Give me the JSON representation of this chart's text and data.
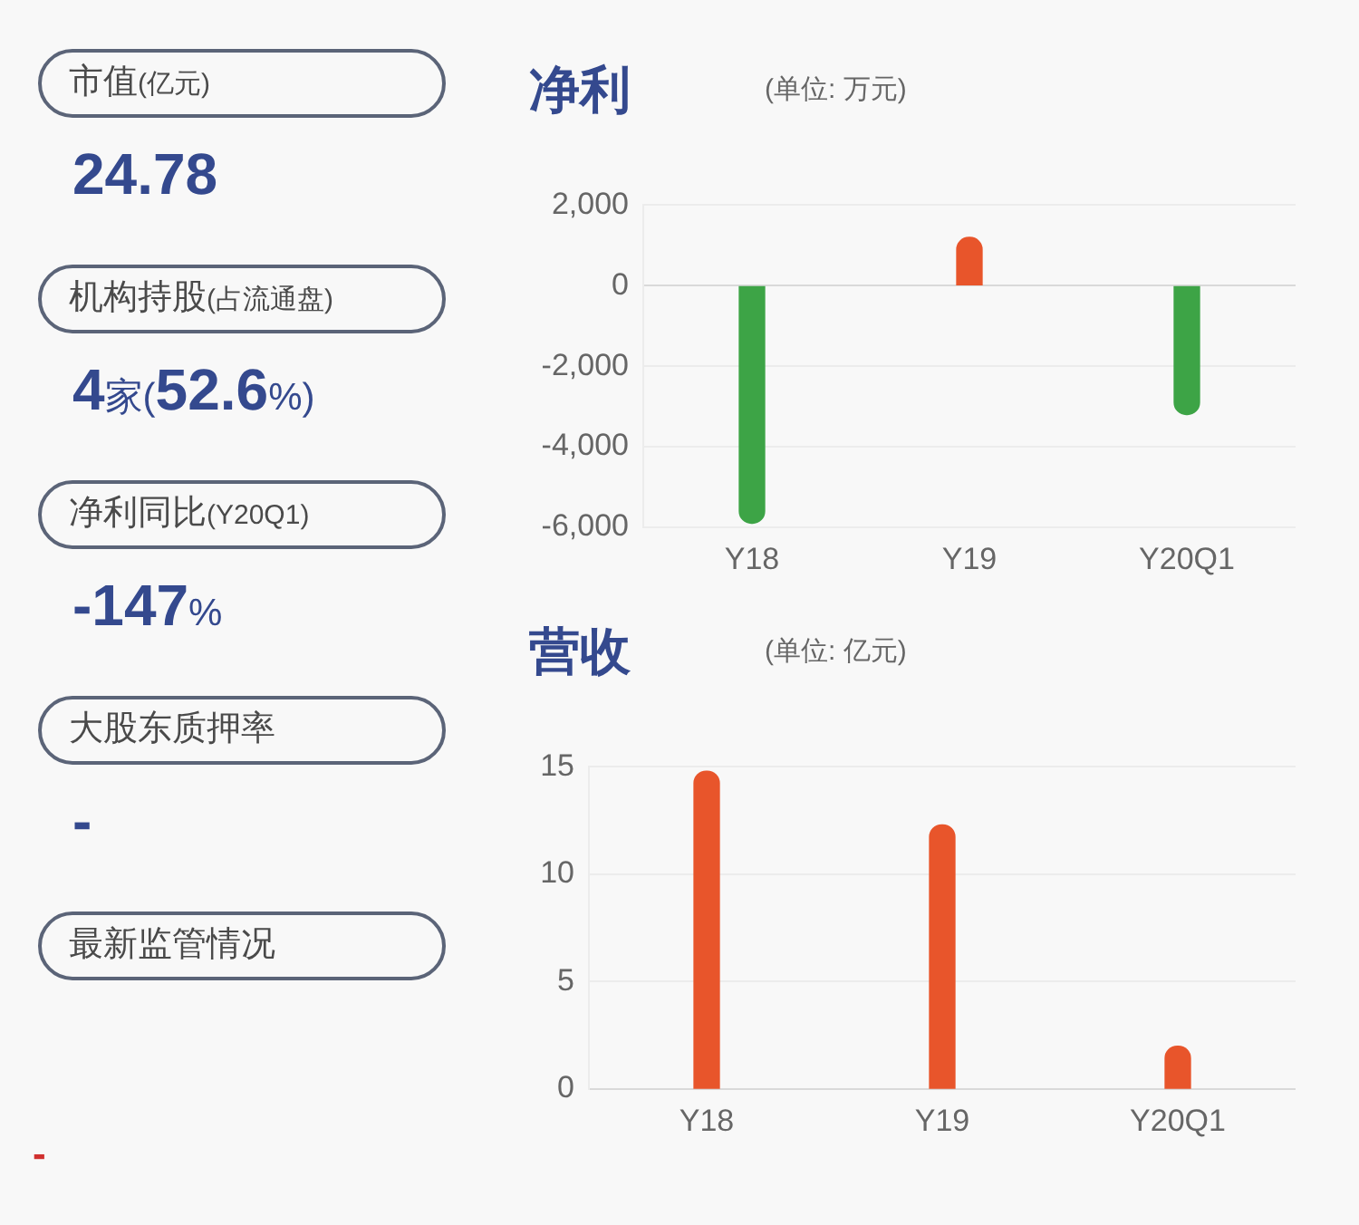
{
  "chart_data": [
    {
      "type": "other",
      "annotations": [
        "市值(亿元)",
        "24.78",
        "机构持股(占流通盘)",
        "4家(52.6%)",
        "净利同比(Y20Q1)",
        "-147%",
        "大股东质押率",
        "-",
        "最新监管情况",
        "-"
      ],
      "colors": [
        "#4a4a4a",
        "#34498e",
        "#4a4a4a",
        "#34498e",
        "#4a4a4a",
        "#34498e",
        "#4a4a4a",
        "#34498e",
        "#4a4a4a",
        "#d0302f"
      ]
    },
    {
      "type": "bar",
      "title": "净利",
      "subtitle": "(单位: 万元)",
      "categories": [
        "Y18",
        "Y19",
        "Y20Q1"
      ],
      "values": [
        -5900,
        1200,
        -3200
      ],
      "colors": [
        "#3da446",
        "#e8552b",
        "#3da446"
      ],
      "ylim": [
        -6000,
        2000
      ],
      "yticks": [
        {
          "value": -6000,
          "label": "-6,000"
        },
        {
          "value": -4000,
          "label": "-4,000"
        },
        {
          "value": -2000,
          "label": "-2,000"
        },
        0,
        {
          "value": 2000,
          "label": "2,000"
        }
      ],
      "grid": "y"
    },
    {
      "type": "bar",
      "title": "营收",
      "subtitle": "(单位: 亿元)",
      "categories": [
        "Y18",
        "Y19",
        "Y20Q1"
      ],
      "values": [
        14.8,
        12.3,
        2.0
      ],
      "color": "#e8552b",
      "ylim": [
        0,
        15
      ],
      "yticks": [
        0,
        5,
        10,
        15
      ],
      "grid": "y"
    }
  ]
}
